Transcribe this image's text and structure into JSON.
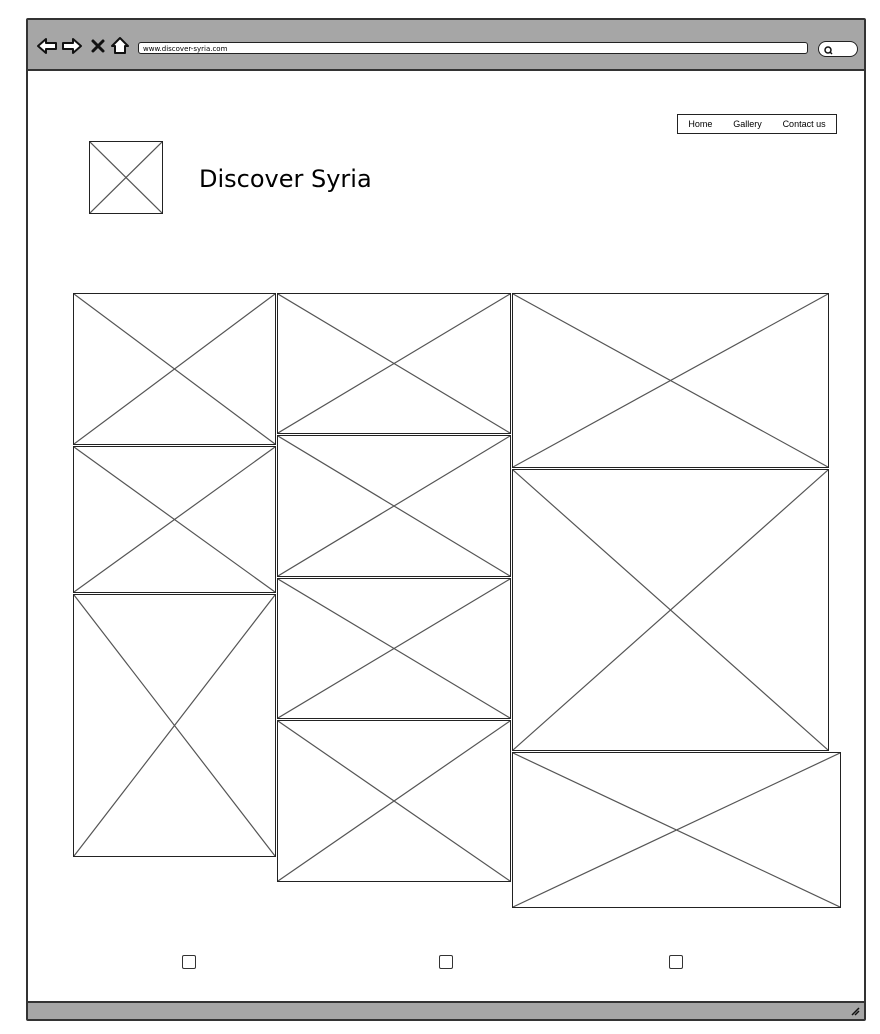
{
  "browser": {
    "url": "www.discover-syria.com",
    "icons": [
      "back-arrow-icon",
      "forward-arrow-icon",
      "close-icon",
      "home-icon",
      "search-icon",
      "resize-grip-icon"
    ]
  },
  "nav": {
    "home": "Home",
    "gallery": "Gallery",
    "contact": "Contact us"
  },
  "header": {
    "title": "Discover Syria"
  },
  "gallery": {
    "item_count": 10
  },
  "footer": {
    "checkbox_count": 3
  }
}
